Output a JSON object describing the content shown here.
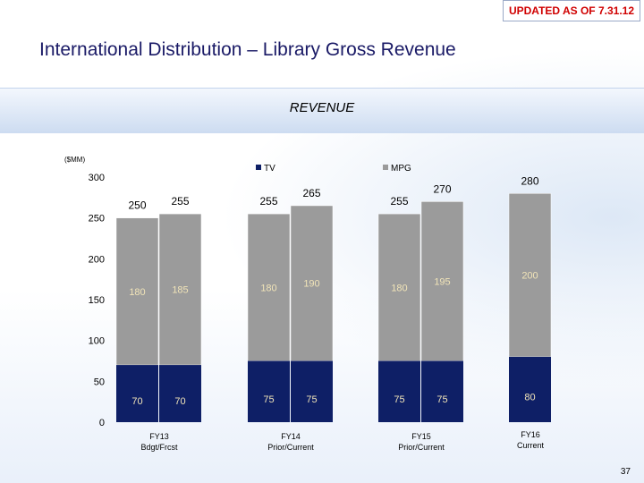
{
  "badge": "UPDATED AS OF 7.31.12",
  "title": "International Distribution – Library Gross Revenue",
  "band_label": "REVENUE",
  "page_number": "37",
  "colors": {
    "tv": "#0e1f66",
    "mpg": "#9b9b9b"
  },
  "chart_data": {
    "type": "bar",
    "stacked": true,
    "unit_label": "($MM)",
    "ylim": [
      0,
      300
    ],
    "yticks": [
      0,
      50,
      100,
      150,
      200,
      250,
      300
    ],
    "legend_position": "top",
    "grid": false,
    "groups": [
      {
        "label": [
          "FY13",
          "Bdgt/Frcst"
        ],
        "bars": [
          {
            "tv": 70,
            "mpg": 180,
            "total": 250
          },
          {
            "tv": 70,
            "mpg": 185,
            "total": 255
          }
        ]
      },
      {
        "label": [
          "FY14",
          "Prior/Current"
        ],
        "bars": [
          {
            "tv": 75,
            "mpg": 180,
            "total": 255
          },
          {
            "tv": 75,
            "mpg": 190,
            "total": 265
          }
        ]
      },
      {
        "label": [
          "FY15",
          "Prior/Current"
        ],
        "bars": [
          {
            "tv": 75,
            "mpg": 180,
            "total": 255
          },
          {
            "tv": 75,
            "mpg": 195,
            "total": 270
          }
        ]
      },
      {
        "label": [
          "FY16",
          "Current"
        ],
        "bars": [
          {
            "tv": 80,
            "mpg": 200,
            "total": 280
          }
        ]
      }
    ],
    "series": [
      {
        "key": "tv",
        "name": "TV"
      },
      {
        "key": "mpg",
        "name": "MPG"
      }
    ]
  }
}
